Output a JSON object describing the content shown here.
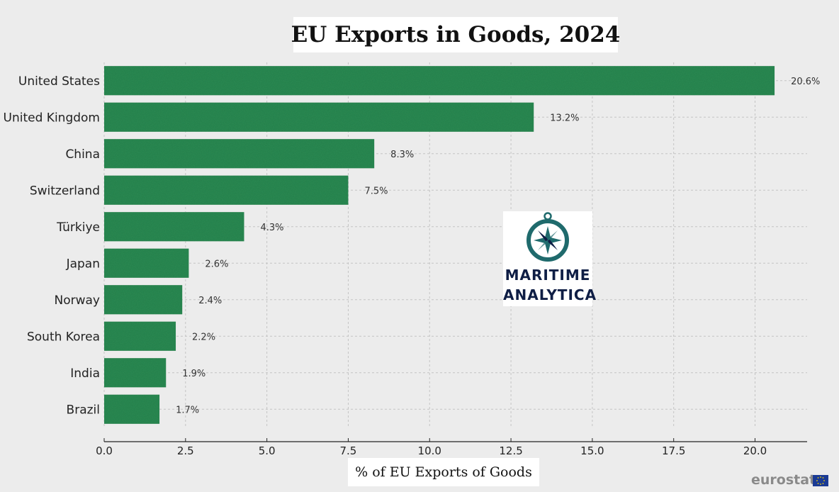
{
  "chart_data": {
    "type": "bar",
    "orientation": "horizontal",
    "title": "EU Exports in Goods, 2024",
    "xlabel": "% of EU Exports of Goods",
    "ylabel": "",
    "categories": [
      "United States",
      "United Kingdom",
      "China",
      "Switzerland",
      "Türkiye",
      "Japan",
      "Norway",
      "South Korea",
      "India",
      "Brazil"
    ],
    "values": [
      20.6,
      13.2,
      8.3,
      7.5,
      4.3,
      2.6,
      2.4,
      2.2,
      1.9,
      1.7
    ],
    "value_labels": [
      "20.6%",
      "13.2%",
      "8.3%",
      "7.5%",
      "4.3%",
      "2.6%",
      "2.4%",
      "2.2%",
      "1.9%",
      "1.7%"
    ],
    "xlim": [
      0,
      21.6
    ],
    "xticks": [
      0,
      2.5,
      5,
      7.5,
      10,
      12.5,
      15,
      17.5,
      20
    ],
    "xtick_labels": [
      "0.0",
      "2.5",
      "5.0",
      "7.5",
      "10.0",
      "12.5",
      "15.0",
      "17.5",
      "20.0"
    ],
    "grid": true,
    "bar_color": "#2a8a52"
  },
  "logo": {
    "line1": "MARITIME",
    "line2": "ANALYTICA",
    "color": "#0f1e45",
    "accent": "#1f6a6c"
  },
  "source": {
    "label": "eurostat",
    "flag_color": "#1a3a94"
  }
}
